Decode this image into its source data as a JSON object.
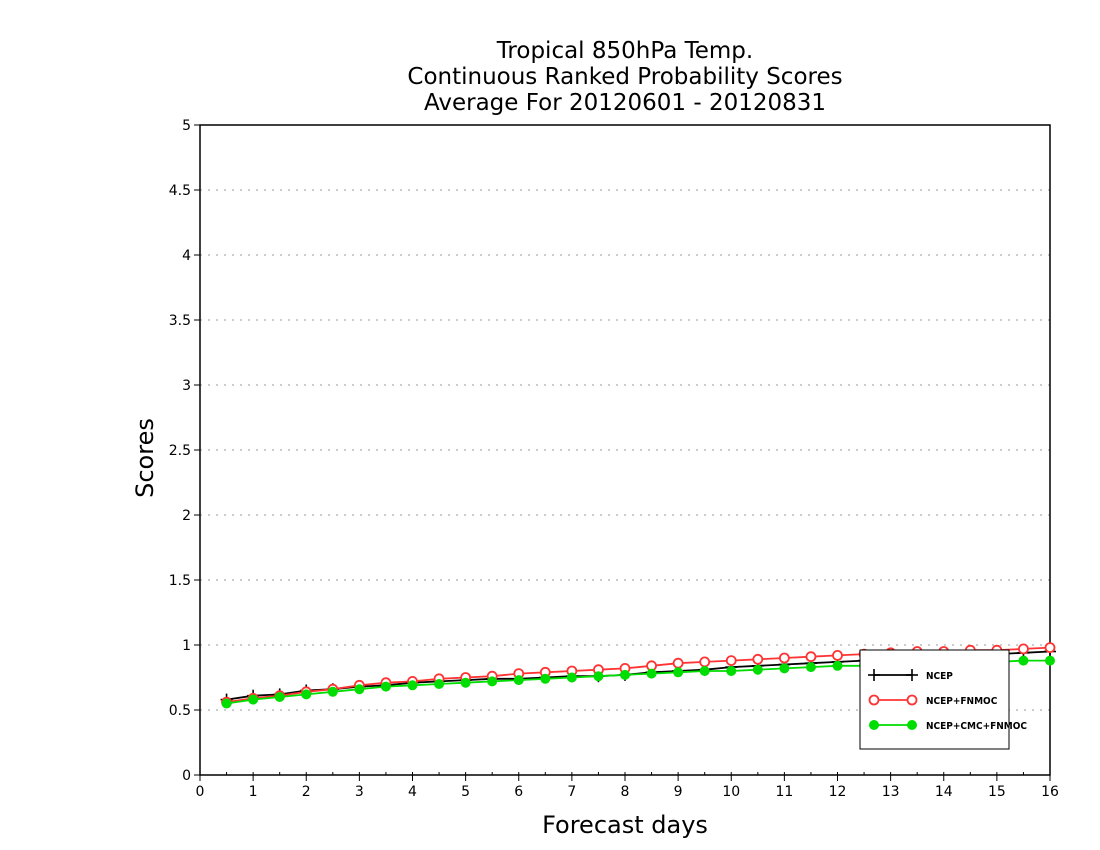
{
  "chart_data": {
    "type": "line",
    "title_lines": [
      "Tropical 850hPa Temp.",
      "Continuous Ranked Probability Scores",
      "Average For 20120601 - 20120831"
    ],
    "xlabel": "Forecast days",
    "ylabel": "Scores",
    "xlim": [
      0,
      16
    ],
    "ylim": [
      0,
      5
    ],
    "x_ticks": [
      0,
      1,
      2,
      3,
      4,
      5,
      6,
      7,
      8,
      9,
      10,
      11,
      12,
      13,
      14,
      15,
      16
    ],
    "y_ticks": [
      0,
      0.5,
      1,
      1.5,
      2,
      2.5,
      3,
      3.5,
      4,
      4.5,
      5
    ],
    "grid": "horizontal dotted",
    "legend_position": "lower-right",
    "x": [
      0.5,
      1,
      1.5,
      2,
      2.5,
      3,
      3.5,
      4,
      4.5,
      5,
      5.5,
      6,
      6.5,
      7,
      7.5,
      8,
      8.5,
      9,
      9.5,
      10,
      10.5,
      11,
      11.5,
      12,
      12.5,
      13,
      13.5,
      14,
      14.5,
      15,
      15.5,
      16
    ],
    "series": [
      {
        "name": "NCEP",
        "color": "#000000",
        "marker": "plus",
        "values": [
          0.58,
          0.61,
          0.62,
          0.65,
          0.66,
          0.68,
          0.69,
          0.71,
          0.72,
          0.73,
          0.74,
          0.74,
          0.75,
          0.76,
          0.76,
          0.77,
          0.79,
          0.8,
          0.81,
          0.83,
          0.84,
          0.85,
          0.86,
          0.87,
          0.88,
          0.89,
          0.9,
          0.91,
          0.92,
          0.93,
          0.94,
          0.95
        ]
      },
      {
        "name": "NCEP+FNMOC",
        "color": "#ff3333",
        "marker": "open-circle",
        "values": [
          0.56,
          0.59,
          0.61,
          0.64,
          0.66,
          0.69,
          0.71,
          0.72,
          0.74,
          0.75,
          0.76,
          0.78,
          0.79,
          0.8,
          0.81,
          0.82,
          0.84,
          0.86,
          0.87,
          0.88,
          0.89,
          0.9,
          0.91,
          0.92,
          0.93,
          0.94,
          0.95,
          0.95,
          0.96,
          0.96,
          0.97,
          0.98
        ]
      },
      {
        "name": "NCEP+CMC+FNMOC",
        "color": "#00dd00",
        "marker": "filled-circle",
        "values": [
          0.55,
          0.58,
          0.6,
          0.62,
          0.64,
          0.66,
          0.68,
          0.69,
          0.7,
          0.71,
          0.72,
          0.73,
          0.74,
          0.75,
          0.76,
          0.77,
          0.78,
          0.79,
          0.8,
          0.8,
          0.81,
          0.82,
          0.83,
          0.84,
          0.84,
          0.85,
          0.86,
          0.86,
          0.87,
          0.87,
          0.88,
          0.88
        ]
      }
    ]
  }
}
